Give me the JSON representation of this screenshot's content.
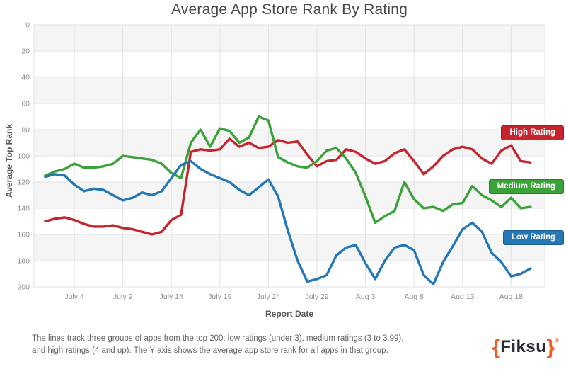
{
  "title": "Average App Store Rank By Rating",
  "footer": {
    "line1": "The lines track three groups of apps from the top 200: low ratings (under 3), medium ratings (3 to 3.99),",
    "line2": "and high ratings (4 and up). The Y axis shows the average app store rank for all apps in that group."
  },
  "logo": {
    "open_brace": "{",
    "text": "Fiksu",
    "close_brace": "}",
    "registered": "®",
    "brace_color": "#f15c22",
    "text_color": "#2a2a33"
  },
  "chart_data": {
    "type": "line",
    "title": "Average App Store Rank By Rating",
    "xlabel": "Report Date",
    "ylabel": "Average Top Rank",
    "ylim": [
      0,
      200
    ],
    "y_inverted": true,
    "grid": true,
    "legend_position": "right",
    "band_color": "#f5f5f5",
    "grid_color": "#e2e2e2",
    "tick_text_color": "#8b8b8b",
    "y_ticks": [
      0,
      20,
      40,
      60,
      80,
      100,
      120,
      140,
      160,
      180,
      200
    ],
    "x_tick_labels": [
      "July 4",
      "July 9",
      "July 14",
      "July 19",
      "July 24",
      "July 29",
      "Aug 3",
      "Aug 8",
      "Aug 13",
      "Aug 18"
    ],
    "x_tick_positions": [
      3,
      8,
      13,
      18,
      23,
      28,
      33,
      38,
      43,
      48
    ],
    "x_start_date": "July 1",
    "x_end_date": "Aug 20",
    "n_points": 51,
    "series": [
      {
        "name": "High Rating",
        "color": "#c7242e",
        "values": [
          150,
          148,
          147,
          149,
          152,
          154,
          154,
          153,
          155,
          156,
          158,
          160,
          158,
          149,
          145,
          97,
          95,
          96,
          95,
          87,
          93,
          90,
          94,
          93,
          88,
          90,
          89,
          99,
          108,
          104,
          103,
          95,
          97,
          102,
          106,
          104,
          98,
          95,
          104,
          114,
          108,
          100,
          95,
          93,
          95,
          102,
          106,
          96,
          92,
          104,
          105
        ]
      },
      {
        "name": "Medium Rating",
        "color": "#3ba23a",
        "values": [
          115,
          112,
          110,
          106,
          109,
          109,
          108,
          106,
          100,
          101,
          102,
          103,
          106,
          113,
          117,
          90,
          80,
          93,
          79,
          81,
          90,
          86,
          70,
          73,
          101,
          105,
          108,
          109,
          104,
          96,
          94,
          102,
          113,
          131,
          151,
          146,
          142,
          120,
          133,
          140,
          139,
          142,
          137,
          136,
          123,
          130,
          134,
          139,
          132,
          140,
          139
        ]
      },
      {
        "name": "Low Rating",
        "color": "#2378b5",
        "values": [
          116,
          114,
          115,
          122,
          127,
          125,
          126,
          130,
          134,
          132,
          128,
          130,
          127,
          117,
          107,
          104,
          110,
          114,
          117,
          120,
          126,
          130,
          124,
          118,
          131,
          157,
          180,
          196,
          194,
          191,
          176,
          170,
          168,
          182,
          194,
          180,
          170,
          168,
          172,
          191,
          198,
          181,
          169,
          156,
          151,
          158,
          174,
          181,
          192,
          190,
          186
        ]
      }
    ]
  }
}
